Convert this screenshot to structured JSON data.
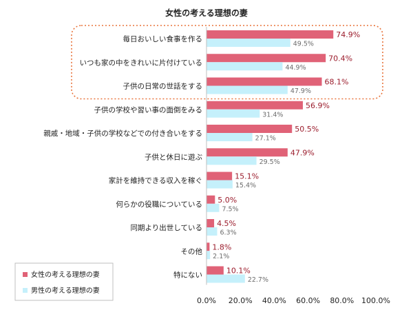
{
  "chart_data": {
    "type": "bar",
    "orientation": "horizontal",
    "title": "女性の考える理想の妻",
    "categories": [
      "毎日おいしい食事を作る",
      "いつも家の中をきれいに片付けている",
      "子供の日常の世話をする",
      "子供の学校や習い事の面倒をみる",
      "親戚・地域・子供の学校などでの付き合いをする",
      "子供と休日に遊ぶ",
      "家計を維持できる収入を稼ぐ",
      "何らかの役職についている",
      "同期より出世している",
      "その他",
      "特にない"
    ],
    "series": [
      {
        "name": "女性の考える理想の妻",
        "color": "#e06277",
        "label_color": "#9b1c2c",
        "values": [
          74.9,
          70.4,
          68.1,
          56.9,
          50.5,
          47.9,
          15.1,
          5.0,
          4.5,
          1.8,
          10.1
        ],
        "labels": [
          "74.9%",
          "70.4%",
          "68.1%",
          "56.9%",
          "50.5%",
          "47.9%",
          "15.1%",
          "5.0%",
          "4.5%",
          "1.8%",
          "10.1%"
        ]
      },
      {
        "name": "男性の考える理想の妻",
        "color": "#c5f0fb",
        "label_color": "#6d6d6d",
        "values": [
          49.5,
          44.9,
          47.9,
          31.4,
          27.1,
          29.5,
          15.4,
          7.5,
          6.3,
          2.1,
          22.7
        ],
        "labels": [
          "49.5%",
          "44.9%",
          "47.9%",
          "31.4%",
          "27.1%",
          "29.5%",
          "15.4%",
          "7.5%",
          "6.3%",
          "2.1%",
          "22.7%"
        ]
      }
    ],
    "xlim": [
      0,
      100
    ],
    "x_ticks": [
      "0.0%",
      "20.0%",
      "40.0%",
      "60.0%",
      "80.0%",
      "100.0%"
    ],
    "grid": false,
    "legend_position": "bottom-left",
    "highlight": {
      "categories": [
        "毎日おいしい食事を作る",
        "いつも家の中をきれいに片付けている",
        "子供の日常の世話をする"
      ],
      "style": "dotted",
      "color": "#e8733a"
    }
  }
}
